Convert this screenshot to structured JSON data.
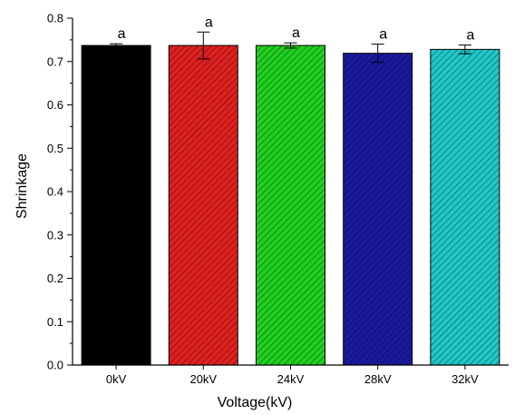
{
  "chart_data": {
    "type": "bar",
    "xlabel": "Voltage(kV)",
    "ylabel": "Shrinkage",
    "ylim": [
      0,
      0.8
    ],
    "yticks": [
      "0.0",
      "0.1",
      "0.2",
      "0.3",
      "0.4",
      "0.5",
      "0.6",
      "0.7",
      "0.8"
    ],
    "categories": [
      "0kV",
      "20kV",
      "24kV",
      "28kV",
      "32kV"
    ],
    "values": [
      0.737,
      0.737,
      0.737,
      0.719,
      0.728
    ],
    "errors": [
      0.004,
      0.031,
      0.006,
      0.021,
      0.01
    ],
    "annotations": [
      "a",
      "a",
      "a",
      "a",
      "a"
    ],
    "bar_colors": [
      "#000000",
      "#e02020",
      "#20d020",
      "#1a1aa0",
      "#20c8c8"
    ],
    "pattern": "diagonal-hatch",
    "grid": false,
    "legend": "none"
  }
}
